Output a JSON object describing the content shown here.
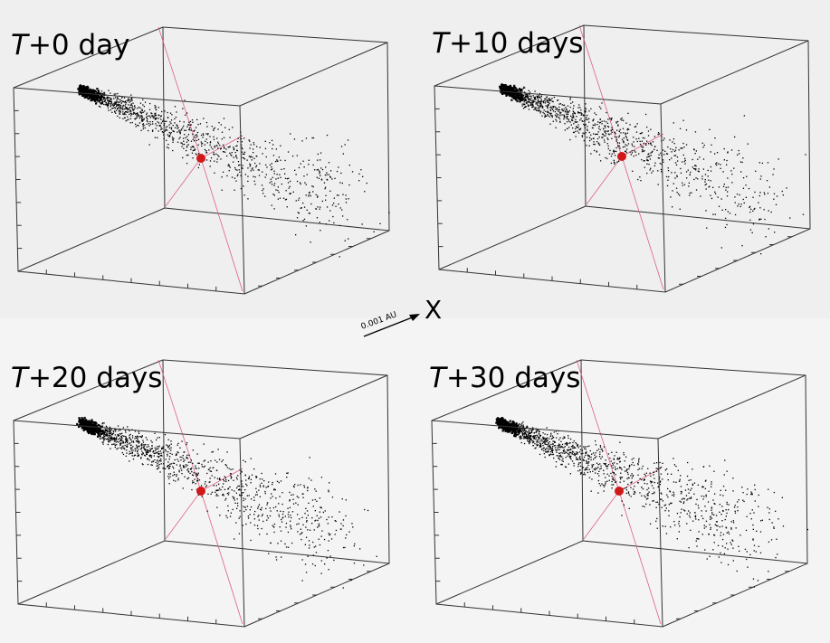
{
  "panels": [
    {
      "label": {
        "variable": "T",
        "rest": "+0 day"
      }
    },
    {
      "label": {
        "variable": "T",
        "rest": "+10 days"
      }
    },
    {
      "label": {
        "variable": "T",
        "rest": "+20 days"
      }
    },
    {
      "label": {
        "variable": "T",
        "rest": "+30 days"
      }
    }
  ],
  "scale_bar": {
    "length_label": "0.001 AU",
    "axis_label": "X"
  }
}
